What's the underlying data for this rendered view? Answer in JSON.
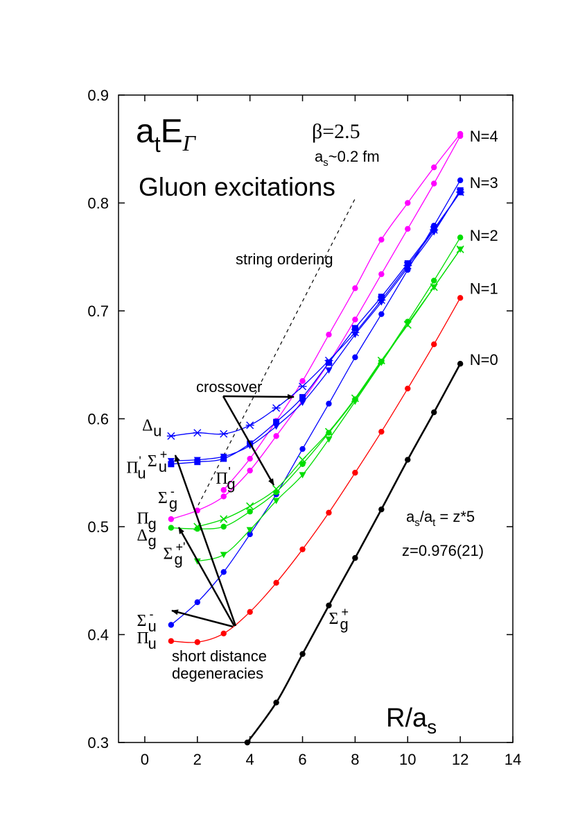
{
  "chart_data": {
    "type": "line",
    "xlim": [
      -1,
      14
    ],
    "ylim": [
      0.3,
      0.9
    ],
    "x_ticks": [
      0,
      2,
      4,
      6,
      8,
      10,
      12,
      14
    ],
    "y_ticks": [
      0.3,
      0.4,
      0.5,
      0.6,
      0.7,
      0.8,
      0.9
    ],
    "x_tick_labels": [
      "0",
      "2",
      "4",
      "6",
      "8",
      "10",
      "12",
      "14"
    ],
    "y_tick_labels": [
      "0.3",
      "0.4",
      "0.5",
      "0.6",
      "0.7",
      "0.8",
      "0.9"
    ],
    "grid": false,
    "ylabel": {
      "main": "a",
      "sub1": "t",
      "main2": "E",
      "sub2": "Γ"
    },
    "xlabel": {
      "main": "R/a",
      "sub": "s"
    },
    "title": "Gluon excitations",
    "beta_label": "β=2.5",
    "spacing_label": {
      "main": "a",
      "sub": "s",
      "rest": "~0.2 fm"
    },
    "anisotropy_label": {
      "a1": "a",
      "s1": "s",
      "mid": "/a",
      "s2": "t",
      "rest": " = z*5"
    },
    "z_label": "z=0.976(21)",
    "colors": {
      "black": "#000000",
      "red": "#ff0000",
      "green": "#00dd00",
      "blue": "#0000ff",
      "magenta": "#ff00ff"
    },
    "band_labels": [
      {
        "text": "N=0",
        "x": 12.2,
        "y": 0.655
      },
      {
        "text": "N=1",
        "x": 12.2,
        "y": 0.721
      },
      {
        "text": "N=2",
        "x": 12.2,
        "y": 0.77
      },
      {
        "text": "N=3",
        "x": 12.2,
        "y": 0.819
      },
      {
        "text": "N=4",
        "x": 12.2,
        "y": 0.862
      }
    ],
    "state_labels": [
      {
        "sym": "Σ",
        "sub": "g",
        "sup": "+",
        "x": 7.0,
        "y": 0.41
      },
      {
        "sym": "Π",
        "sub": "u",
        "sup": "",
        "x": -0.3,
        "y": 0.392
      },
      {
        "sym": "Σ",
        "sub": "u",
        "sup": "-",
        "x": -0.3,
        "y": 0.408
      },
      {
        "sym": "Σ",
        "sub": "g",
        "sup": "+'",
        "x": 0.7,
        "y": 0.47
      },
      {
        "sym": "Δ",
        "sub": "g",
        "sup": "",
        "x": -0.3,
        "y": 0.487
      },
      {
        "sym": "Π",
        "sub": "g",
        "sup": "",
        "x": -0.3,
        "y": 0.503
      },
      {
        "sym": "Σ",
        "sub": "g",
        "sup": "-",
        "x": 0.5,
        "y": 0.522
      },
      {
        "sym": "Π",
        "sub": "g",
        "sup": "'",
        "x": 2.7,
        "y": 0.54
      },
      {
        "sym": "Π",
        "sub": "u",
        "sup": "'",
        "x": -0.7,
        "y": 0.55
      },
      {
        "sym": "Σ",
        "sub": "u",
        "sup": "+",
        "x": 0.1,
        "y": 0.556
      },
      {
        "sym": "Δ",
        "sub": "u",
        "sup": "",
        "x": -0.1,
        "y": 0.589
      }
    ],
    "annotations": {
      "crossover": "crossover",
      "string_ordering": "string ordering",
      "short_distance_line1": "short distance",
      "short_distance_line2": "degeneracies"
    },
    "series": [
      {
        "name": "Σg+",
        "color": "#000000",
        "marker": "circle",
        "thick": true,
        "x": [
          3.9,
          5,
          6,
          7,
          8,
          9,
          10,
          11,
          12
        ],
        "y": [
          0.3,
          0.337,
          0.382,
          0.427,
          0.471,
          0.516,
          0.562,
          0.606,
          0.651
        ]
      },
      {
        "name": "Πu",
        "color": "#ff0000",
        "marker": "circle",
        "x": [
          1,
          2,
          3,
          4,
          5,
          6,
          7,
          8,
          9,
          10,
          11,
          12
        ],
        "y": [
          0.394,
          0.393,
          0.401,
          0.421,
          0.448,
          0.479,
          0.513,
          0.55,
          0.588,
          0.628,
          0.669,
          0.712
        ]
      },
      {
        "name": "Σu-",
        "color": "#0000ff",
        "marker": "circle",
        "x": [
          1,
          2,
          3,
          4,
          5,
          6,
          7,
          8,
          9,
          10,
          11,
          12
        ],
        "y": [
          0.409,
          0.43,
          0.458,
          0.493,
          0.53,
          0.572,
          0.614,
          0.657,
          0.697,
          0.738,
          0.779,
          0.821
        ]
      },
      {
        "name": "Σg+'",
        "color": "#00dd00",
        "marker": "tri",
        "x": [
          2,
          3,
          4,
          5,
          6,
          7,
          8,
          9,
          10,
          11,
          12
        ],
        "y": [
          0.468,
          0.474,
          0.497,
          0.524,
          0.548,
          0.581,
          0.616,
          0.652,
          0.688,
          0.722,
          0.757
        ]
      },
      {
        "name": "Δg",
        "color": "#00dd00",
        "marker": "circle",
        "x": [
          1,
          2,
          3,
          4,
          5,
          6,
          7,
          8,
          9,
          10,
          11,
          12
        ],
        "y": [
          0.499,
          0.498,
          0.5,
          0.514,
          0.532,
          0.558,
          0.587,
          0.618,
          0.653,
          0.69,
          0.728,
          0.768
        ]
      },
      {
        "name": "Πg",
        "color": "#00dd00",
        "marker": "x",
        "x": [
          2,
          3,
          4,
          5,
          6,
          7,
          8,
          9,
          10,
          11,
          12
        ],
        "y": [
          0.5,
          0.507,
          0.519,
          0.535,
          0.562,
          0.588,
          0.619,
          0.654,
          0.687,
          0.722,
          0.757
        ]
      },
      {
        "name": "Σg-",
        "color": "#ff00ff",
        "marker": "circle",
        "x": [
          1,
          2,
          3,
          4,
          5,
          6,
          7,
          8,
          9,
          10,
          11,
          12
        ],
        "y": [
          0.507,
          0.515,
          0.528,
          0.552,
          0.584,
          0.617,
          0.652,
          0.692,
          0.734,
          0.776,
          0.818,
          0.862
        ]
      },
      {
        "name": "Π'g",
        "color": "#ff00ff",
        "marker": "circle",
        "x": [
          3,
          4,
          5,
          6,
          7,
          8,
          9,
          10,
          11,
          12
        ],
        "y": [
          0.534,
          0.563,
          0.598,
          0.635,
          0.678,
          0.721,
          0.766,
          0.8,
          0.833,
          0.864
        ]
      },
      {
        "name": "Π'u",
        "color": "#0000ff",
        "marker": "square",
        "x": [
          1,
          2,
          3,
          4,
          5,
          6,
          7,
          8,
          9,
          10,
          11,
          12
        ],
        "y": [
          0.558,
          0.56,
          0.563,
          0.577,
          0.597,
          0.62,
          0.652,
          0.684,
          0.713,
          0.744,
          0.776,
          0.81
        ]
      },
      {
        "name": "Σu+",
        "color": "#0000ff",
        "marker": "tri",
        "x": [
          1,
          2,
          3,
          4,
          5,
          6,
          7,
          8,
          9,
          10,
          11,
          12
        ],
        "y": [
          0.561,
          0.562,
          0.565,
          0.575,
          0.593,
          0.615,
          0.645,
          0.678,
          0.708,
          0.74,
          0.773,
          0.812
        ]
      },
      {
        "name": "Δu",
        "color": "#0000ff",
        "marker": "star",
        "x": [
          1,
          2,
          3,
          4,
          5,
          6,
          7,
          8,
          9,
          10,
          11,
          12
        ],
        "y": [
          0.584,
          0.587,
          0.586,
          0.594,
          0.61,
          0.63,
          0.654,
          0.68,
          0.71,
          0.742,
          0.775,
          0.81
        ]
      }
    ]
  }
}
